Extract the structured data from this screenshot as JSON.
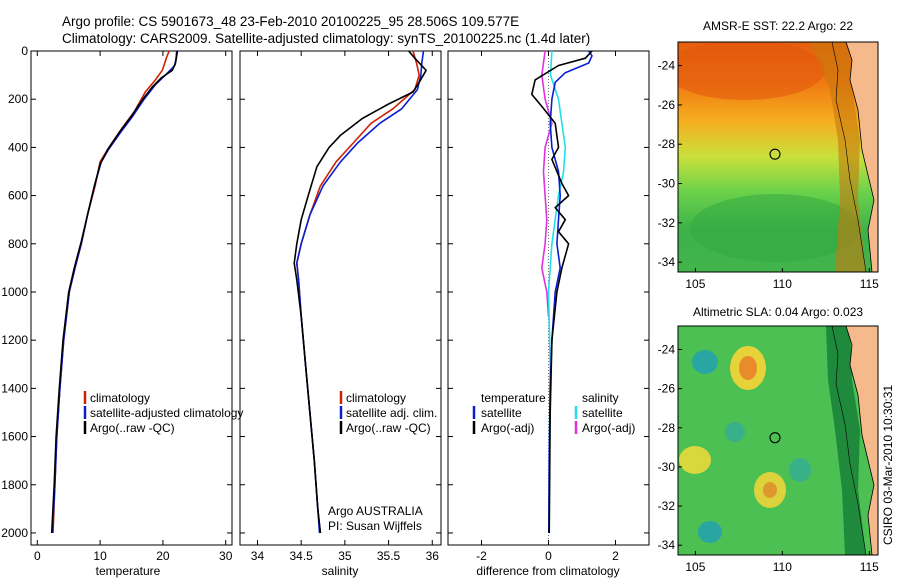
{
  "header": {
    "title_line1": "Argo profile: CS 5901673_48 23-Feb-2010 20100225_95 28.506S 109.577E",
    "title_line2": "Climatology: CARS2009. Satellite-adjusted climatology: synTS_20100225.nc (1.4d later)"
  },
  "stamp": "CSIRO 03-Mar-2010 10:30:31",
  "colors": {
    "climatology": "#cc2200",
    "satellite": "#0a1ed2",
    "argo": "#000000",
    "sat_sal": "#22ddee",
    "argo_sal": "#dd33dd"
  },
  "chart_data": [
    {
      "id": "temp",
      "type": "line",
      "xlabel": "temperature",
      "xlim": [
        -1,
        31
      ],
      "ylim": [
        2050,
        0
      ],
      "xticks": [
        0,
        10,
        20,
        30
      ],
      "yticks": [
        0,
        200,
        400,
        600,
        800,
        1000,
        1200,
        1400,
        1600,
        1800,
        2000
      ],
      "legend": {
        "items": [
          "climatology",
          "satellite-adjusted climatology",
          "Argo(..raw -QC)"
        ]
      },
      "series": [
        {
          "key": "climatology",
          "points": [
            [
              21,
              0
            ],
            [
              20.6,
              25
            ],
            [
              20.3,
              50
            ],
            [
              19.9,
              80
            ],
            [
              18.8,
              120
            ],
            [
              17.2,
              170
            ],
            [
              15.5,
              250
            ],
            [
              13.5,
              320
            ],
            [
              11.4,
              400
            ],
            [
              10,
              460
            ],
            [
              9.2,
              560
            ],
            [
              8,
              680
            ],
            [
              7,
              800
            ],
            [
              6,
              900
            ],
            [
              5.1,
              1000
            ],
            [
              4.2,
              1200
            ],
            [
              3.6,
              1400
            ],
            [
              3.1,
              1600
            ],
            [
              2.8,
              1800
            ],
            [
              2.5,
              2000
            ]
          ]
        },
        {
          "key": "satellite",
          "points": [
            [
              22.2,
              0
            ],
            [
              22.1,
              30
            ],
            [
              21.9,
              60
            ],
            [
              20.4,
              100
            ],
            [
              18.8,
              140
            ],
            [
              17,
              200
            ],
            [
              15.2,
              270
            ],
            [
              13.2,
              340
            ],
            [
              11.3,
              410
            ],
            [
              10.2,
              460
            ],
            [
              9.1,
              560
            ],
            [
              8,
              680
            ],
            [
              7,
              800
            ],
            [
              6,
              900
            ],
            [
              5.1,
              1000
            ],
            [
              4.2,
              1200
            ],
            [
              3.6,
              1400
            ],
            [
              3.1,
              1600
            ],
            [
              2.8,
              1800
            ],
            [
              2.4,
              2000
            ]
          ]
        },
        {
          "key": "argo",
          "points": [
            [
              22.3,
              0
            ],
            [
              22.2,
              20
            ],
            [
              22,
              50
            ],
            [
              21.5,
              80
            ],
            [
              19.8,
              110
            ],
            [
              18.3,
              150
            ],
            [
              16.8,
              200
            ],
            [
              15,
              270
            ],
            [
              13,
              340
            ],
            [
              11.2,
              410
            ],
            [
              10,
              470
            ],
            [
              9.1,
              560
            ],
            [
              8,
              680
            ],
            [
              7,
              790
            ],
            [
              5.9,
              900
            ],
            [
              5,
              1000
            ],
            [
              4.1,
              1200
            ],
            [
              3.5,
              1400
            ],
            [
              3,
              1600
            ],
            [
              2.7,
              1800
            ],
            [
              2.3,
              2000
            ]
          ]
        }
      ]
    },
    {
      "id": "sal",
      "type": "line",
      "xlabel": "salinity",
      "xlim": [
        33.8,
        36.1
      ],
      "ylim": [
        2050,
        0
      ],
      "xticks": [
        34,
        34.5,
        35,
        35.5,
        36
      ],
      "yticks": [
        0,
        200,
        400,
        600,
        800,
        1000,
        1200,
        1400,
        1600,
        1800,
        2000
      ],
      "legend": {
        "items": [
          "climatology",
          "satellite adj. clim.",
          "Argo(..raw -QC)"
        ]
      },
      "annotation": [
        "Argo AUSTRALIA",
        "PI: Susan Wijffels"
      ],
      "series": [
        {
          "key": "climatology",
          "points": [
            [
              35.78,
              0
            ],
            [
              35.82,
              50
            ],
            [
              35.85,
              100
            ],
            [
              35.8,
              160
            ],
            [
              35.55,
              240
            ],
            [
              35.3,
              300
            ],
            [
              35.1,
              380
            ],
            [
              34.9,
              460
            ],
            [
              34.72,
              560
            ],
            [
              34.6,
              680
            ],
            [
              34.5,
              800
            ],
            [
              34.45,
              880
            ],
            [
              34.47,
              950
            ],
            [
              34.5,
              1100
            ],
            [
              34.55,
              1300
            ],
            [
              34.6,
              1500
            ],
            [
              34.65,
              1700
            ],
            [
              34.69,
              1900
            ],
            [
              34.72,
              2000
            ]
          ]
        },
        {
          "key": "satellite",
          "points": [
            [
              35.9,
              0
            ],
            [
              35.88,
              50
            ],
            [
              35.87,
              100
            ],
            [
              35.83,
              160
            ],
            [
              35.65,
              240
            ],
            [
              35.4,
              300
            ],
            [
              35.15,
              380
            ],
            [
              34.95,
              460
            ],
            [
              34.75,
              560
            ],
            [
              34.6,
              680
            ],
            [
              34.5,
              800
            ],
            [
              34.45,
              880
            ],
            [
              34.47,
              950
            ],
            [
              34.5,
              1100
            ],
            [
              34.55,
              1300
            ],
            [
              34.6,
              1500
            ],
            [
              34.65,
              1700
            ],
            [
              34.69,
              1900
            ],
            [
              34.71,
              2000
            ]
          ]
        },
        {
          "key": "argo",
          "points": [
            [
              35.73,
              0
            ],
            [
              35.8,
              30
            ],
            [
              35.93,
              80
            ],
            [
              35.85,
              130
            ],
            [
              35.78,
              170
            ],
            [
              35.5,
              220
            ],
            [
              35.2,
              280
            ],
            [
              34.95,
              350
            ],
            [
              34.82,
              400
            ],
            [
              34.68,
              480
            ],
            [
              34.58,
              600
            ],
            [
              34.5,
              700
            ],
            [
              34.45,
              800
            ],
            [
              34.42,
              880
            ],
            [
              34.45,
              950
            ],
            [
              34.5,
              1100
            ],
            [
              34.55,
              1300
            ],
            [
              34.6,
              1500
            ],
            [
              34.65,
              1700
            ],
            [
              34.69,
              1900
            ],
            [
              34.72,
              2000
            ]
          ]
        }
      ]
    },
    {
      "id": "diff",
      "type": "line",
      "xlabel": "difference from climatology",
      "xlim": [
        -3,
        3
      ],
      "ylim": [
        2050,
        0
      ],
      "xticks": [
        -2,
        0,
        2
      ],
      "yticks": [
        0,
        200,
        400,
        600,
        800,
        1000,
        1200,
        1400,
        1600,
        1800,
        2000
      ],
      "legend": {
        "temperature_title": "temperature",
        "salinity_title": "salinity",
        "temperature_items": [
          "satellite",
          "Argo(-adj)"
        ],
        "salinity_items": [
          "satellite",
          "Argo(-adj)"
        ]
      },
      "series": [
        {
          "key": "t_sat",
          "points": [
            [
              1.2,
              0
            ],
            [
              1.3,
              20
            ],
            [
              1.2,
              50
            ],
            [
              0.5,
              90
            ],
            [
              0.2,
              130
            ],
            [
              0.1,
              200
            ],
            [
              0.05,
              300
            ],
            [
              0.1,
              400
            ],
            [
              0.3,
              500
            ],
            [
              0.35,
              600
            ],
            [
              0.3,
              700
            ],
            [
              0.25,
              800
            ],
            [
              0.35,
              900
            ],
            [
              0.2,
              1000
            ],
            [
              0.1,
              1200
            ],
            [
              0.05,
              1400
            ],
            [
              0.02,
              1700
            ],
            [
              0.01,
              2000
            ]
          ]
        },
        {
          "key": "t_argo",
          "points": [
            [
              1.3,
              0
            ],
            [
              1.1,
              30
            ],
            [
              0.3,
              60
            ],
            [
              -0.4,
              120
            ],
            [
              -0.5,
              180
            ],
            [
              -0.2,
              230
            ],
            [
              0.2,
              300
            ],
            [
              0.3,
              400
            ],
            [
              0.1,
              450
            ],
            [
              0.4,
              550
            ],
            [
              0.6,
              600
            ],
            [
              0.2,
              650
            ],
            [
              0.5,
              700
            ],
            [
              0.3,
              750
            ],
            [
              0.6,
              800
            ],
            [
              0.4,
              900
            ],
            [
              0.25,
              1000
            ],
            [
              0.1,
              1200
            ],
            [
              0.05,
              1500
            ],
            [
              0.02,
              2000
            ]
          ]
        },
        {
          "key": "s_sat",
          "points": [
            [
              0.1,
              0
            ],
            [
              0.06,
              100
            ],
            [
              0.3,
              200
            ],
            [
              0.4,
              300
            ],
            [
              0.5,
              400
            ],
            [
              0.45,
              500
            ],
            [
              0.3,
              600
            ],
            [
              0.2,
              700
            ],
            [
              0.1,
              800
            ],
            [
              0.05,
              900
            ],
            [
              0,
              1000
            ],
            [
              0.05,
              1300
            ],
            [
              0.03,
              1600
            ],
            [
              0.02,
              2000
            ]
          ]
        },
        {
          "key": "s_argo",
          "points": [
            [
              -0.1,
              0
            ],
            [
              -0.2,
              100
            ],
            [
              -0.1,
              200
            ],
            [
              0.1,
              300
            ],
            [
              -0.1,
              400
            ],
            [
              -0.15,
              500
            ],
            [
              -0.1,
              600
            ],
            [
              -0.05,
              700
            ],
            [
              -0.1,
              800
            ],
            [
              -0.2,
              900
            ],
            [
              -0.05,
              1000
            ],
            [
              0,
              1100
            ]
          ]
        }
      ]
    }
  ],
  "maps": [
    {
      "id": "sst",
      "title": "AMSR-E SST: 22.2 Argo: 22",
      "xlim": [
        104,
        115.5
      ],
      "ylim": [
        -34.5,
        -22.8
      ],
      "xticks": [
        105,
        110,
        115
      ],
      "yticks": [
        -24,
        -26,
        -28,
        -30,
        -32,
        -34
      ],
      "marker": {
        "lon": 109.577,
        "lat": -28.506
      }
    },
    {
      "id": "sla",
      "title": "Altimetric SLA: 0.04 Argo: 0.023",
      "xlim": [
        104,
        115.5
      ],
      "ylim": [
        -34.5,
        -22.8
      ],
      "xticks": [
        105,
        110,
        115
      ],
      "yticks": [
        -24,
        -26,
        -28,
        -30,
        -32,
        -34
      ],
      "marker": {
        "lon": 109.577,
        "lat": -28.506
      }
    }
  ]
}
